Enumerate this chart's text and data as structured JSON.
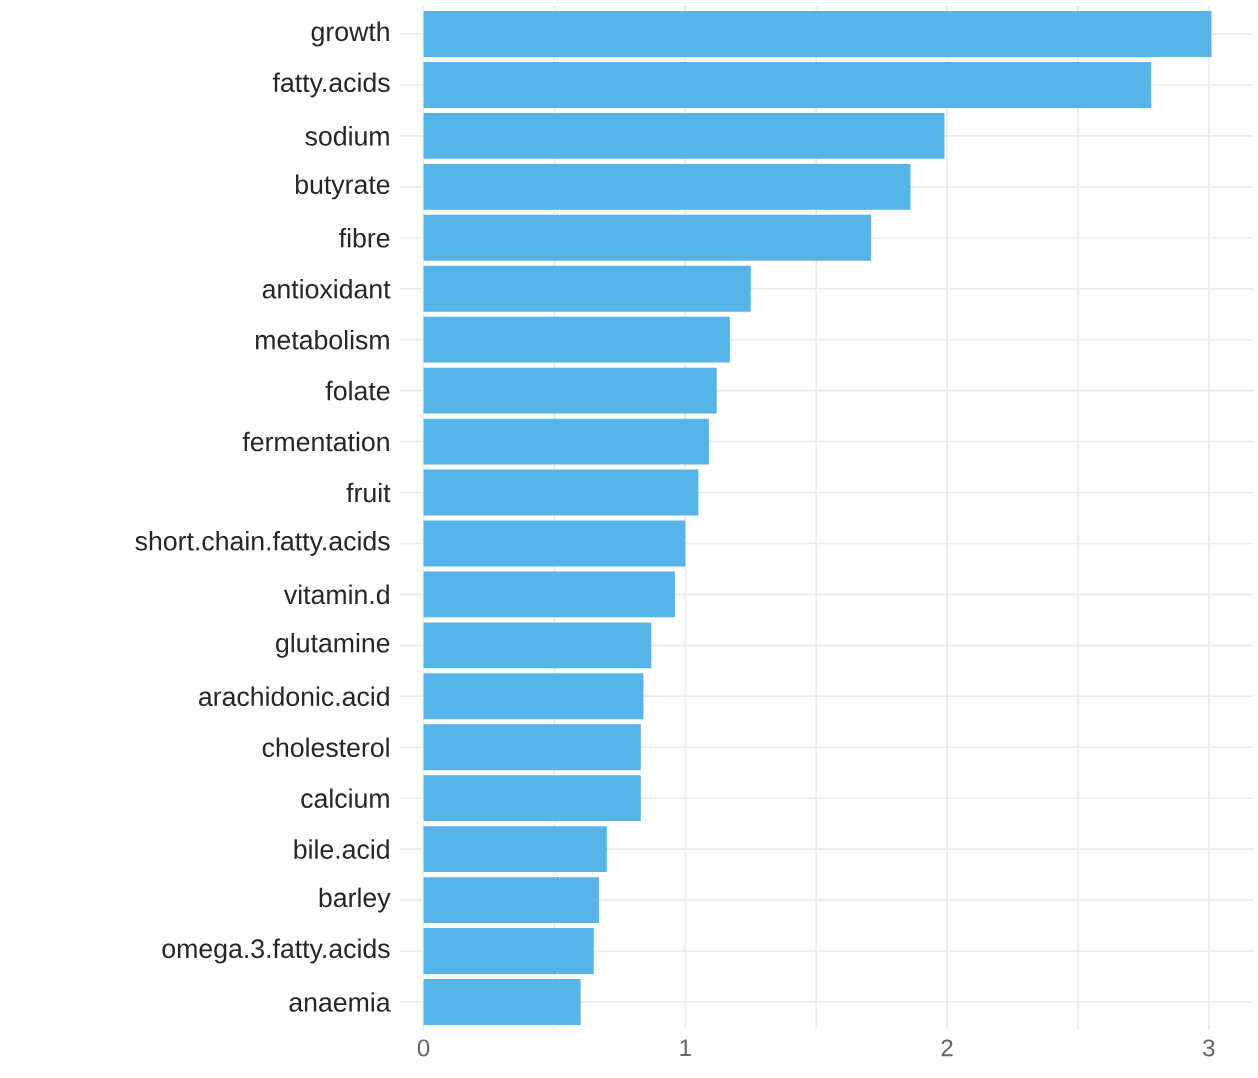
{
  "chart_data": {
    "type": "bar",
    "orientation": "horizontal",
    "color": "#56b4e9",
    "grid": true,
    "categories": [
      "growth",
      "fatty.acids",
      "sodium",
      "butyrate",
      "fibre",
      "antioxidant",
      "metabolism",
      "folate",
      "fermentation",
      "fruit",
      "short.chain.fatty.acids",
      "vitamin.d",
      "glutamine",
      "arachidonic.acid",
      "cholesterol",
      "calcium",
      "bile.acid",
      "barley",
      "omega.3.fatty.acids",
      "anaemia"
    ],
    "values": [
      3.01,
      2.78,
      1.99,
      1.86,
      1.71,
      1.25,
      1.17,
      1.12,
      1.09,
      1.05,
      1.0,
      0.96,
      0.87,
      0.84,
      0.83,
      0.83,
      0.7,
      0.67,
      0.65,
      0.6
    ],
    "xlim": [
      -0.09,
      3.17
    ],
    "xticks": [
      0,
      {
        "value": 0.5,
        "label": null
      },
      1,
      {
        "value": 1.5,
        "label": null
      },
      2,
      {
        "value": 2.5,
        "label": null
      },
      3
    ]
  }
}
